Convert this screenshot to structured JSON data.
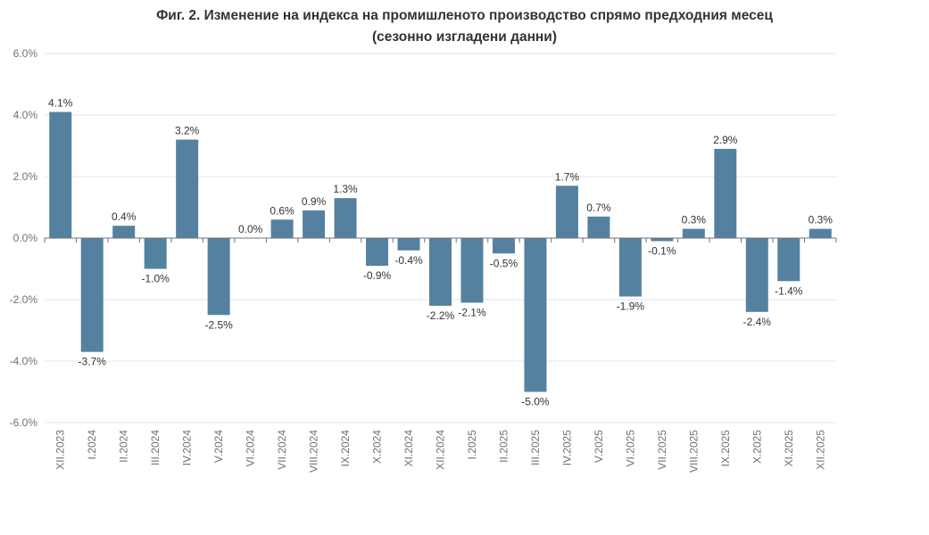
{
  "chart_data": {
    "type": "bar",
    "title_line1": "Фиг. 2. Изменение на индекса на промишленото производство спрямо предходния месец",
    "title_line2": "(сезонно изгладени данни)",
    "categories": [
      "XII.2023",
      "I.2024",
      "II.2024",
      "III.2024",
      "IV.2024",
      "V.2024",
      "VI.2024",
      "VII.2024",
      "VIII.2024",
      "IX.2024",
      "X.2024",
      "XI.2024",
      "XII.2024",
      "I.2025",
      "II.2025",
      "III.2025",
      "IV.2025",
      "V.2025",
      "VI.2025",
      "VII.2025",
      "VIII.2025",
      "IX.2025",
      "X.2025",
      "XI.2025",
      "XII.2025"
    ],
    "values": [
      4.1,
      -3.7,
      0.4,
      -1.0,
      3.2,
      -2.5,
      0.0,
      0.6,
      0.9,
      1.3,
      -0.9,
      -0.4,
      -2.2,
      -2.1,
      -0.5,
      -5.0,
      1.7,
      0.7,
      -1.9,
      -0.1,
      0.3,
      2.9,
      -2.4,
      -1.4,
      0.3
    ],
    "data_labels": [
      "4.1%",
      "-3.7%",
      "0.4%",
      "-1.0%",
      "3.2%",
      "-2.5%",
      "0.0%",
      "0.6%",
      "0.9%",
      "1.3%",
      "-0.9%",
      "-0.4%",
      "-2.2%",
      "-2.1%",
      "-0.5%",
      "-5.0%",
      "1.7%",
      "0.7%",
      "-1.9%",
      "-0.1%",
      "0.3%",
      "2.9%",
      "-2.4%",
      "-1.4%",
      "0.3%"
    ],
    "ylim": [
      -6,
      6
    ],
    "yticks": [
      6,
      4,
      2,
      0,
      -2,
      -4,
      -6
    ],
    "ytick_labels": [
      "6.0%",
      "4.0%",
      "2.0%",
      "0.0%",
      "-2.0%",
      "-4.0%",
      "-6.0%"
    ],
    "xlabel": "",
    "ylabel": "",
    "grid": true,
    "bar_color": "#5581a0",
    "grid_color": "#e0e6f1"
  }
}
